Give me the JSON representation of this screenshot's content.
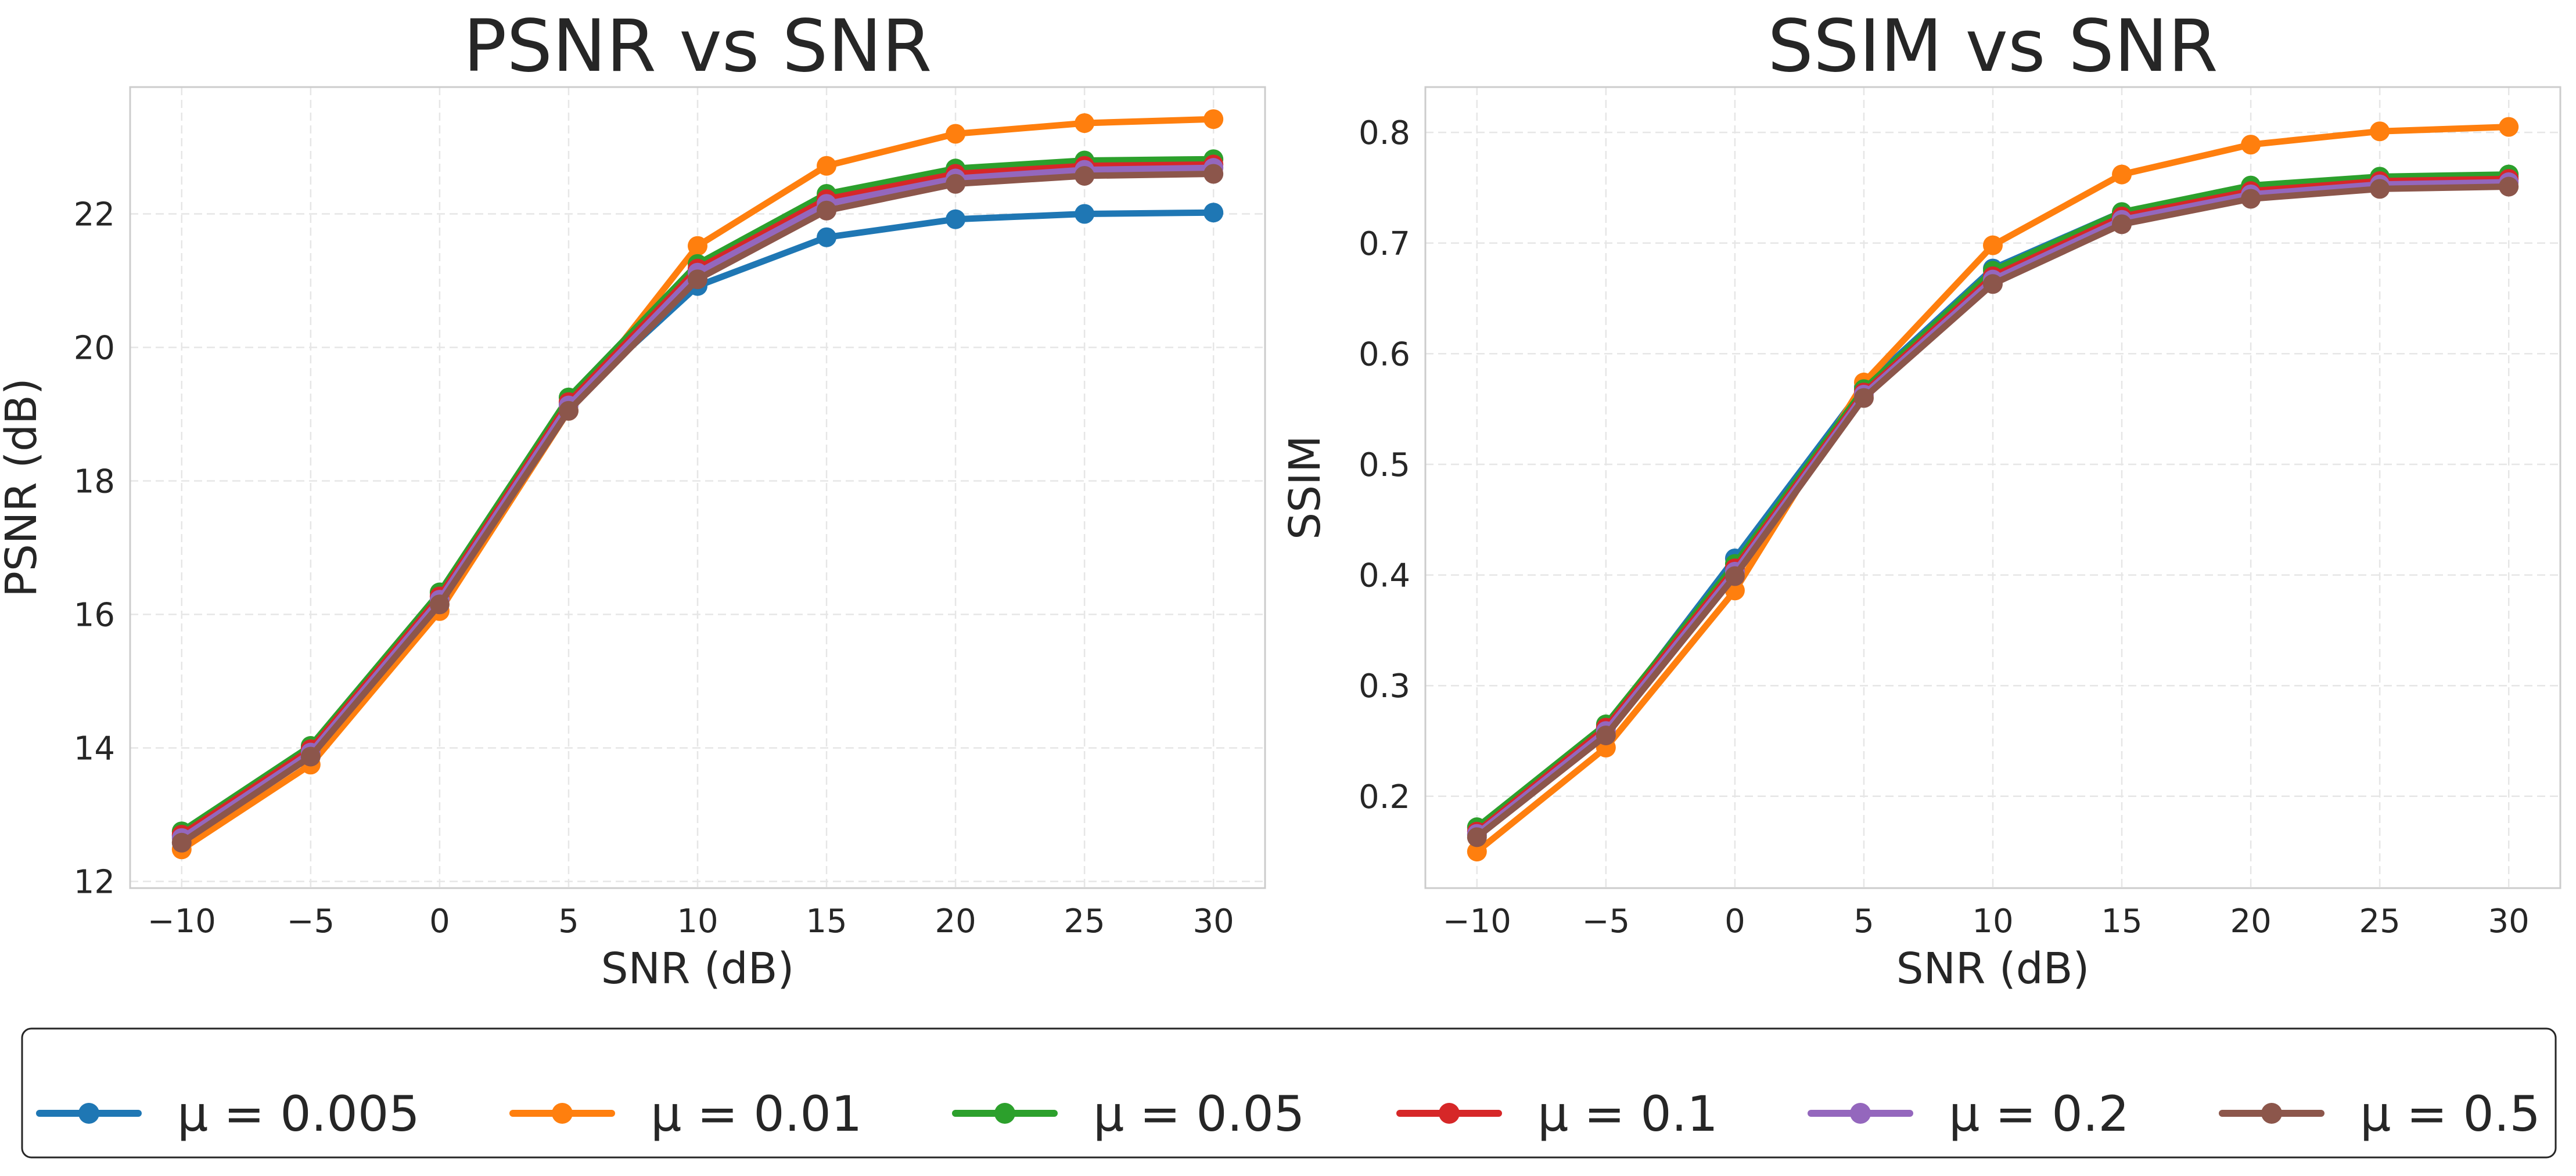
{
  "chart_data": [
    {
      "type": "line",
      "title": "PSNR vs SNR",
      "xlabel": "SNR (dB)",
      "ylabel": "PSNR (dB)",
      "x": [
        -10,
        -5,
        0,
        5,
        10,
        15,
        20,
        25,
        30
      ],
      "xticks": [
        "−10",
        "−5",
        "0",
        "5",
        "10",
        "15",
        "20",
        "25",
        "30"
      ],
      "xlim": [
        -12,
        32
      ],
      "yticks": [
        12,
        14,
        16,
        18,
        20,
        22
      ],
      "ylim": [
        11.9,
        23.9
      ],
      "grid": true,
      "series": [
        {
          "name": "μ = 0.005",
          "color": "#1f77b4",
          "values": [
            12.68,
            13.95,
            16.22,
            19.15,
            20.92,
            21.65,
            21.92,
            22.0,
            22.02
          ]
        },
        {
          "name": "μ = 0.01",
          "color": "#ff7f0e",
          "values": [
            12.48,
            13.75,
            16.05,
            19.05,
            21.52,
            22.72,
            23.2,
            23.36,
            23.42
          ]
        },
        {
          "name": "μ = 0.05",
          "color": "#2ca02c",
          "values": [
            12.75,
            14.03,
            16.33,
            19.25,
            21.25,
            22.3,
            22.68,
            22.8,
            22.82
          ]
        },
        {
          "name": "μ = 0.1",
          "color": "#d62728",
          "values": [
            12.7,
            13.98,
            16.27,
            19.18,
            21.18,
            22.22,
            22.6,
            22.72,
            22.74
          ]
        },
        {
          "name": "μ = 0.2",
          "color": "#9467bd",
          "values": [
            12.65,
            13.93,
            16.22,
            19.13,
            21.12,
            22.15,
            22.53,
            22.66,
            22.69
          ]
        },
        {
          "name": "μ = 0.5",
          "color": "#8c564b",
          "values": [
            12.58,
            13.87,
            16.15,
            19.05,
            21.02,
            22.05,
            22.45,
            22.57,
            22.6
          ]
        }
      ]
    },
    {
      "type": "line",
      "title": "SSIM vs SNR",
      "xlabel": "SNR (dB)",
      "ylabel": "SSIM",
      "x": [
        -10,
        -5,
        0,
        5,
        10,
        15,
        20,
        25,
        30
      ],
      "xticks": [
        "−10",
        "−5",
        "0",
        "5",
        "10",
        "15",
        "20",
        "25",
        "30"
      ],
      "xlim": [
        -12,
        32
      ],
      "yticks": [
        "0.2",
        "0.3",
        "0.4",
        "0.5",
        "0.6",
        "0.7",
        "0.8"
      ],
      "ylim": [
        0.117,
        0.841
      ],
      "grid": true,
      "series": [
        {
          "name": "μ = 0.005",
          "color": "#1f77b4",
          "values": [
            0.165,
            0.262,
            0.415,
            0.57,
            0.677,
            0.728,
            0.75,
            0.757,
            0.76
          ]
        },
        {
          "name": "μ = 0.01",
          "color": "#ff7f0e",
          "values": [
            0.15,
            0.244,
            0.386,
            0.574,
            0.698,
            0.762,
            0.789,
            0.801,
            0.805
          ]
        },
        {
          "name": "μ = 0.05",
          "color": "#2ca02c",
          "values": [
            0.172,
            0.265,
            0.41,
            0.568,
            0.675,
            0.728,
            0.752,
            0.76,
            0.762
          ]
        },
        {
          "name": "μ = 0.1",
          "color": "#d62728",
          "values": [
            0.168,
            0.262,
            0.406,
            0.565,
            0.67,
            0.724,
            0.747,
            0.756,
            0.758
          ]
        },
        {
          "name": "μ = 0.2",
          "color": "#9467bd",
          "values": [
            0.166,
            0.259,
            0.403,
            0.563,
            0.667,
            0.721,
            0.744,
            0.753,
            0.755
          ]
        },
        {
          "name": "μ = 0.5",
          "color": "#8c564b",
          "values": [
            0.163,
            0.255,
            0.399,
            0.56,
            0.663,
            0.717,
            0.74,
            0.749,
            0.751
          ]
        }
      ]
    }
  ],
  "legend": {
    "position": "bottom",
    "entries": [
      "μ = 0.005",
      "μ = 0.01",
      "μ = 0.05",
      "μ = 0.1",
      "μ = 0.2",
      "μ = 0.5"
    ]
  }
}
